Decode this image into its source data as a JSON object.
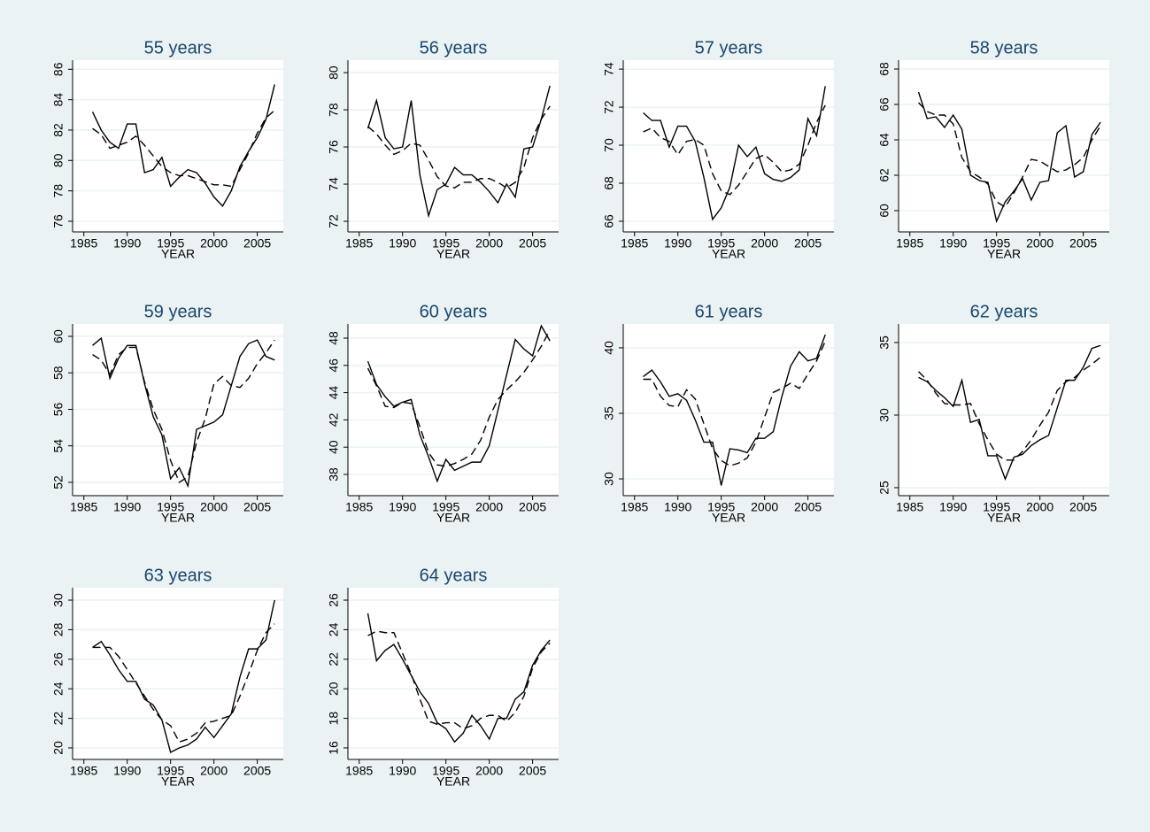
{
  "chart_data": [
    {
      "type": "line",
      "title": "55 years",
      "x_label": "YEAR",
      "x": [
        1986,
        1987,
        1988,
        1989,
        1990,
        1991,
        1992,
        1993,
        1994,
        1995,
        1996,
        1997,
        1998,
        1999,
        2000,
        2001,
        2002,
        2003,
        2004,
        2005,
        2006,
        2007
      ],
      "xlim": [
        1983.7,
        2008
      ],
      "xticks": [
        1985,
        1990,
        1995,
        2000,
        2005
      ],
      "ylim": [
        75.3,
        86.6
      ],
      "yticks": [
        76,
        78,
        80,
        82,
        84,
        86
      ],
      "grid": true,
      "series": [
        {
          "color": "#000000",
          "dash": "solid",
          "values": [
            83.2,
            82.0,
            81.2,
            80.8,
            82.4,
            82.4,
            79.2,
            79.4,
            80.2,
            78.3,
            78.9,
            79.4,
            79.2,
            78.5,
            77.6,
            77.0,
            78.0,
            79.6,
            80.6,
            81.5,
            82.7,
            85.0
          ]
        },
        {
          "color": "#000000",
          "dash": "dashed",
          "values": [
            82.1,
            81.7,
            80.8,
            81.0,
            81.2,
            81.6,
            81.0,
            80.3,
            79.6,
            79.2,
            79.0,
            79.0,
            78.8,
            78.6,
            78.4,
            78.4,
            78.3,
            79.4,
            80.5,
            81.8,
            82.8,
            83.3
          ]
        }
      ]
    },
    {
      "type": "line",
      "title": "56 years",
      "x_label": "YEAR",
      "x": [
        1986,
        1987,
        1988,
        1989,
        1990,
        1991,
        1992,
        1993,
        1994,
        1995,
        1996,
        1997,
        1998,
        1999,
        2000,
        2001,
        2002,
        2003,
        2004,
        2005,
        2006,
        2007
      ],
      "xlim": [
        1983.7,
        2008
      ],
      "xticks": [
        1985,
        1990,
        1995,
        2000,
        2005
      ],
      "ylim": [
        71.43,
        80.67
      ],
      "yticks": [
        72,
        74,
        76,
        78,
        80
      ],
      "grid": true,
      "series": [
        {
          "color": "#000000",
          "dash": "solid",
          "values": [
            77.0,
            78.5,
            76.5,
            75.9,
            76.0,
            78.5,
            74.5,
            72.3,
            73.7,
            74.0,
            74.9,
            74.5,
            74.5,
            74.1,
            73.6,
            73.0,
            74.0,
            73.3,
            75.9,
            76.0,
            77.5,
            79.3
          ]
        },
        {
          "color": "#000000",
          "dash": "dashed",
          "values": [
            77.1,
            76.7,
            76.1,
            75.6,
            75.8,
            76.2,
            76.1,
            75.3,
            74.4,
            73.9,
            73.8,
            74.1,
            74.1,
            74.3,
            74.3,
            74.1,
            73.8,
            74.1,
            74.9,
            76.5,
            77.5,
            78.2
          ]
        }
      ]
    },
    {
      "type": "line",
      "title": "57 years",
      "x_label": "YEAR",
      "x": [
        1986,
        1987,
        1988,
        1989,
        1990,
        1991,
        1992,
        1993,
        1994,
        1995,
        1996,
        1997,
        1998,
        1999,
        2000,
        2001,
        2002,
        2003,
        2004,
        2005,
        2006,
        2007
      ],
      "xlim": [
        1983.7,
        2008
      ],
      "xticks": [
        1985,
        1990,
        1995,
        2000,
        2005
      ],
      "ylim": [
        65.44,
        74.47
      ],
      "yticks": [
        66,
        68,
        70,
        72,
        74
      ],
      "grid": true,
      "series": [
        {
          "color": "#000000",
          "dash": "solid",
          "values": [
            71.7,
            71.3,
            71.3,
            69.9,
            71.0,
            71.0,
            70.2,
            68.3,
            66.1,
            66.7,
            67.8,
            70.0,
            69.4,
            69.9,
            68.5,
            68.2,
            68.1,
            68.3,
            68.7,
            71.4,
            70.5,
            73.1
          ]
        },
        {
          "color": "#000000",
          "dash": "dashed",
          "values": [
            70.7,
            70.9,
            70.4,
            70.2,
            69.5,
            70.2,
            70.3,
            70.0,
            68.5,
            67.6,
            67.4,
            67.9,
            68.6,
            69.3,
            69.5,
            69.1,
            68.6,
            68.7,
            69.0,
            70.0,
            71.2,
            72.1
          ]
        }
      ]
    },
    {
      "type": "line",
      "title": "58 years",
      "x_label": "YEAR",
      "x": [
        1986,
        1987,
        1988,
        1989,
        1990,
        1991,
        1992,
        1993,
        1994,
        1995,
        1996,
        1997,
        1998,
        1999,
        2000,
        2001,
        2002,
        2003,
        2004,
        2005,
        2006,
        2007
      ],
      "xlim": [
        1983.7,
        2008
      ],
      "xticks": [
        1985,
        1990,
        1995,
        2000,
        2005
      ],
      "ylim": [
        58.8,
        68.5
      ],
      "yticks": [
        60,
        62,
        64,
        66,
        68
      ],
      "grid": true,
      "series": [
        {
          "color": "#000000",
          "dash": "solid",
          "values": [
            66.7,
            65.2,
            65.3,
            64.7,
            65.4,
            64.6,
            62.0,
            61.7,
            61.6,
            59.4,
            60.5,
            61.1,
            61.8,
            60.6,
            61.6,
            61.7,
            64.4,
            64.8,
            61.9,
            62.2,
            64.3,
            65.0
          ]
        },
        {
          "color": "#000000",
          "dash": "dashed",
          "values": [
            66.1,
            65.6,
            65.4,
            65.4,
            64.9,
            63.0,
            62.2,
            61.9,
            61.5,
            60.5,
            60.2,
            61.0,
            61.9,
            62.9,
            62.8,
            62.5,
            62.2,
            62.3,
            62.6,
            63.0,
            64.0,
            64.8
          ]
        }
      ]
    },
    {
      "type": "line",
      "title": "59 years",
      "x_label": "YEAR",
      "x": [
        1986,
        1987,
        1988,
        1989,
        1990,
        1991,
        1992,
        1993,
        1994,
        1995,
        1996,
        1997,
        1998,
        1999,
        2000,
        2001,
        2002,
        2003,
        2004,
        2005,
        2006,
        2007
      ],
      "xlim": [
        1983.7,
        2008
      ],
      "xticks": [
        1985,
        1990,
        1995,
        2000,
        2005
      ],
      "ylim": [
        51.27,
        60.68
      ],
      "yticks": [
        52,
        54,
        56,
        58,
        60
      ],
      "grid": true,
      "series": [
        {
          "color": "#000000",
          "dash": "solid",
          "values": [
            59.5,
            59.9,
            57.7,
            58.8,
            59.5,
            59.5,
            57.4,
            55.6,
            54.6,
            52.2,
            52.8,
            51.8,
            54.9,
            55.1,
            55.3,
            55.7,
            57.3,
            58.9,
            59.6,
            59.8,
            58.9,
            58.7
          ]
        },
        {
          "color": "#000000",
          "dash": "dashed",
          "values": [
            59.0,
            58.7,
            57.9,
            59.0,
            59.4,
            59.4,
            57.5,
            56.0,
            54.9,
            53.2,
            52.0,
            52.3,
            54.2,
            55.5,
            57.4,
            57.8,
            57.3,
            57.2,
            57.7,
            58.5,
            59.1,
            59.8
          ]
        }
      ]
    },
    {
      "type": "line",
      "title": "60 years",
      "x_label": "YEAR",
      "x": [
        1986,
        1987,
        1988,
        1989,
        1990,
        1991,
        1992,
        1993,
        1994,
        1995,
        1996,
        1997,
        1998,
        1999,
        2000,
        2001,
        2002,
        2003,
        2004,
        2005,
        2006,
        2007
      ],
      "xlim": [
        1983.7,
        2008
      ],
      "xticks": [
        1985,
        1990,
        1995,
        2000,
        2005
      ],
      "ylim": [
        36.44,
        49.04
      ],
      "yticks": [
        38,
        40,
        42,
        44,
        46,
        48
      ],
      "grid": true,
      "series": [
        {
          "color": "#000000",
          "dash": "solid",
          "values": [
            46.3,
            44.6,
            43.7,
            43.0,
            43.3,
            43.5,
            40.9,
            39.3,
            37.5,
            39.1,
            38.3,
            38.6,
            38.9,
            38.9,
            40.1,
            42.7,
            45.3,
            47.9,
            47.2,
            46.7,
            48.9,
            47.8
          ]
        },
        {
          "color": "#000000",
          "dash": "dashed",
          "values": [
            45.8,
            44.5,
            43.0,
            42.9,
            43.3,
            43.2,
            41.5,
            39.6,
            38.7,
            38.6,
            38.8,
            39.1,
            39.5,
            40.5,
            42.2,
            43.5,
            44.2,
            44.8,
            45.5,
            46.4,
            47.4,
            48.6
          ]
        }
      ]
    },
    {
      "type": "line",
      "title": "61 years",
      "x_label": "YEAR",
      "x": [
        1986,
        1987,
        1988,
        1989,
        1990,
        1991,
        1992,
        1993,
        1994,
        1995,
        1996,
        1997,
        1998,
        1999,
        2000,
        2001,
        2002,
        2003,
        2004,
        2005,
        2006,
        2007
      ],
      "xlim": [
        1983.7,
        2008
      ],
      "xticks": [
        1985,
        1990,
        1995,
        2000,
        2005
      ],
      "ylim": [
        28.72,
        41.82
      ],
      "yticks": [
        30,
        35,
        40
      ],
      "grid": true,
      "series": [
        {
          "color": "#000000",
          "dash": "solid",
          "values": [
            37.8,
            38.3,
            37.4,
            36.3,
            36.5,
            36.0,
            34.5,
            32.8,
            32.8,
            29.5,
            32.3,
            32.2,
            32.0,
            33.1,
            33.1,
            33.6,
            36.3,
            38.6,
            39.7,
            39.0,
            39.2,
            41.0
          ]
        },
        {
          "color": "#000000",
          "dash": "dashed",
          "values": [
            37.6,
            37.6,
            36.3,
            35.6,
            35.5,
            36.8,
            36.1,
            34.2,
            32.3,
            31.4,
            31.0,
            31.2,
            31.6,
            32.8,
            34.7,
            36.6,
            36.9,
            37.3,
            36.9,
            38.0,
            39.0,
            40.5
          ]
        }
      ]
    },
    {
      "type": "line",
      "title": "62 years",
      "x_label": "YEAR",
      "x": [
        1986,
        1987,
        1988,
        1989,
        1990,
        1991,
        1992,
        1993,
        1994,
        1995,
        1996,
        1997,
        1998,
        1999,
        2000,
        2001,
        2002,
        2003,
        2004,
        2005,
        2006,
        2007
      ],
      "xlim": [
        1983.7,
        2008
      ],
      "xticks": [
        1985,
        1990,
        1995,
        2000,
        2005
      ],
      "ylim": [
        24.45,
        36.28
      ],
      "yticks": [
        25,
        30,
        35
      ],
      "grid": true,
      "series": [
        {
          "color": "#000000",
          "dash": "solid",
          "values": [
            32.6,
            32.3,
            31.7,
            31.2,
            30.6,
            32.4,
            29.5,
            29.7,
            27.2,
            27.2,
            25.6,
            27.1,
            27.3,
            27.9,
            28.3,
            28.6,
            30.5,
            32.4,
            32.4,
            33.3,
            34.6,
            34.8
          ]
        },
        {
          "color": "#000000",
          "dash": "dashed",
          "values": [
            33.0,
            32.4,
            31.5,
            30.8,
            30.7,
            30.7,
            30.8,
            29.4,
            28.3,
            27.3,
            26.9,
            26.9,
            27.5,
            28.3,
            29.3,
            30.2,
            31.7,
            32.3,
            32.6,
            33.1,
            33.5,
            34.0
          ]
        }
      ]
    },
    {
      "type": "line",
      "title": "63 years",
      "x_label": "YEAR",
      "x": [
        1986,
        1987,
        1988,
        1989,
        1990,
        1991,
        1992,
        1993,
        1994,
        1995,
        1996,
        1997,
        1998,
        1999,
        2000,
        2001,
        2002,
        2003,
        2004,
        2005,
        2006,
        2007
      ],
      "xlim": [
        1983.7,
        2008
      ],
      "xticks": [
        1985,
        1990,
        1995,
        2000,
        2005
      ],
      "ylim": [
        19.22,
        30.84
      ],
      "yticks": [
        20,
        22,
        24,
        26,
        28,
        30
      ],
      "grid": true,
      "series": [
        {
          "color": "#000000",
          "dash": "solid",
          "values": [
            26.8,
            27.2,
            26.3,
            25.3,
            24.5,
            24.5,
            23.3,
            22.9,
            21.9,
            19.7,
            20.0,
            20.2,
            20.6,
            21.4,
            20.7,
            21.5,
            22.3,
            24.8,
            26.7,
            26.7,
            27.3,
            30.0
          ]
        },
        {
          "color": "#000000",
          "dash": "dashed",
          "values": [
            26.8,
            26.8,
            26.8,
            26.2,
            25.3,
            24.4,
            23.5,
            22.6,
            21.9,
            21.5,
            20.4,
            20.6,
            21.0,
            21.7,
            21.8,
            22.0,
            22.2,
            23.5,
            25.0,
            26.6,
            27.8,
            28.4
          ]
        }
      ]
    },
    {
      "type": "line",
      "title": "64 years",
      "x_label": "YEAR",
      "x": [
        1986,
        1987,
        1988,
        1989,
        1990,
        1991,
        1992,
        1993,
        1994,
        1995,
        1996,
        1997,
        1998,
        1999,
        2000,
        2001,
        2002,
        2003,
        2004,
        2005,
        2006,
        2007
      ],
      "xlim": [
        1983.7,
        2008
      ],
      "xticks": [
        1985,
        1990,
        1995,
        2000,
        2005
      ],
      "ylim": [
        15.22,
        26.84
      ],
      "yticks": [
        16,
        18,
        20,
        22,
        24,
        26
      ],
      "grid": true,
      "series": [
        {
          "color": "#000000",
          "dash": "solid",
          "values": [
            25.1,
            21.9,
            22.6,
            23.0,
            22.0,
            20.9,
            19.8,
            19.0,
            17.7,
            17.3,
            16.4,
            17.0,
            18.2,
            17.5,
            16.6,
            18.0,
            18.0,
            19.3,
            19.8,
            21.6,
            22.6,
            23.3
          ]
        },
        {
          "color": "#000000",
          "dash": "dashed",
          "values": [
            23.6,
            23.9,
            23.8,
            23.8,
            22.4,
            21.0,
            19.3,
            17.8,
            17.6,
            17.7,
            17.7,
            17.3,
            17.5,
            18.0,
            18.2,
            18.2,
            17.8,
            18.4,
            19.5,
            21.4,
            22.5,
            23.1
          ]
        }
      ]
    }
  ]
}
